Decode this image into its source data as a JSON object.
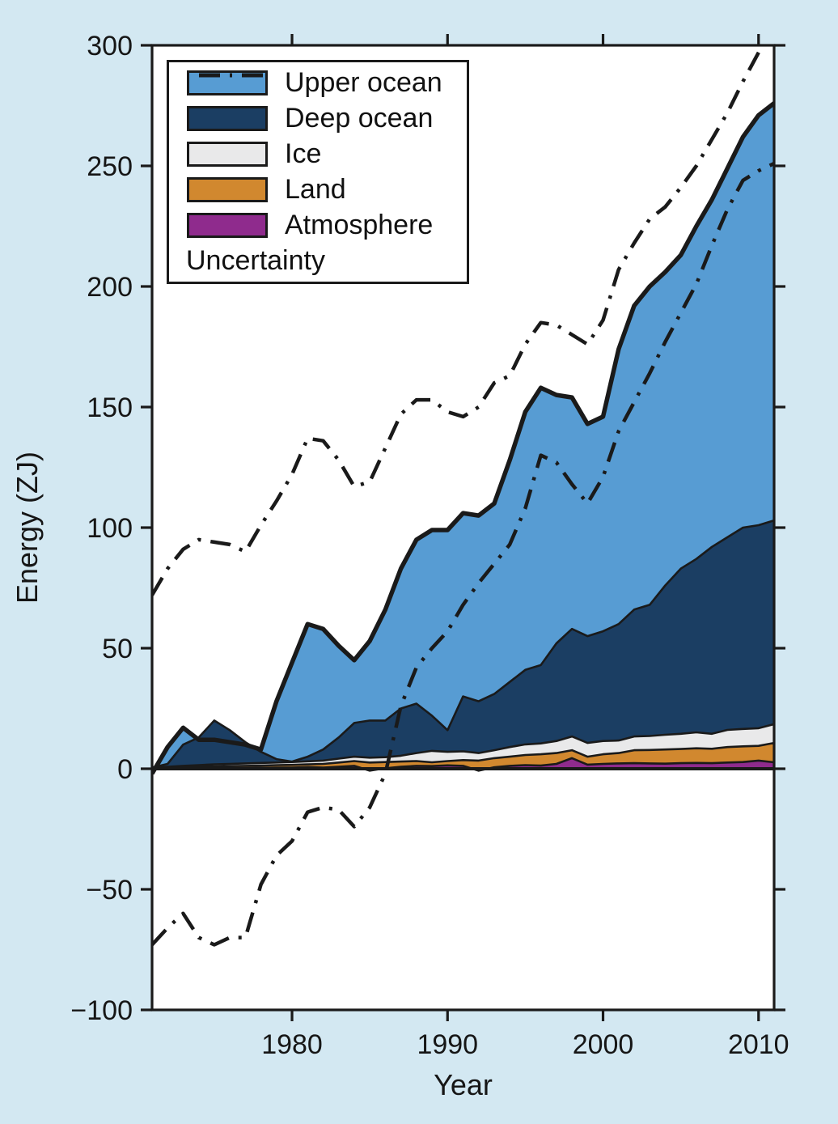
{
  "figure": {
    "background": "#d3e8f2",
    "plot_background": "#ffffff",
    "line_color": "#1a1a1a"
  },
  "axes": {
    "x_label": "Year",
    "y_label": "Energy (ZJ)",
    "x_ticks": [
      1980,
      1990,
      2000,
      2010
    ],
    "y_ticks": [
      300,
      250,
      200,
      150,
      100,
      50,
      0,
      -50,
      -100
    ],
    "x_range": [
      1971,
      2011
    ],
    "y_range": [
      -100,
      300
    ]
  },
  "legend": {
    "items": [
      {
        "label": "Upper ocean",
        "color": "#579cd3",
        "type": "patch"
      },
      {
        "label": "Deep ocean",
        "color": "#1b3e63",
        "type": "patch"
      },
      {
        "label": "Ice",
        "color": "#e9e9ea",
        "type": "patch"
      },
      {
        "label": "Land",
        "color": "#d1882f",
        "type": "patch"
      },
      {
        "label": "Atmosphere",
        "color": "#8f2b8d",
        "type": "patch"
      },
      {
        "label": "Uncertainty",
        "color": "#1a1a1a",
        "type": "dashdot-line"
      }
    ]
  },
  "chart_data": {
    "type": "area",
    "stacked": true,
    "title": "",
    "xlabel": "Year",
    "ylabel": "Energy (ZJ)",
    "xlim": [
      1971,
      2011
    ],
    "ylim": [
      -100,
      300
    ],
    "grid": false,
    "legend_position": "upper-left",
    "years": [
      1971,
      1972,
      1973,
      1974,
      1975,
      1976,
      1977,
      1978,
      1979,
      1980,
      1981,
      1982,
      1983,
      1984,
      1985,
      1986,
      1987,
      1988,
      1989,
      1990,
      1991,
      1992,
      1993,
      1994,
      1995,
      1996,
      1997,
      1998,
      1999,
      2000,
      2001,
      2002,
      2003,
      2004,
      2005,
      2006,
      2007,
      2008,
      2009,
      2010,
      2011
    ],
    "series": [
      {
        "name": "Atmosphere",
        "color": "#8f2b8d",
        "values": [
          0.1,
          0.2,
          0.4,
          0.3,
          0.3,
          0.3,
          0.3,
          0.4,
          0.5,
          0.5,
          0.7,
          0.5,
          0.8,
          1.2,
          -0.8,
          0.2,
          0.8,
          1.2,
          1.1,
          1.4,
          1.2,
          -0.8,
          0.6,
          1.2,
          1.5,
          1.3,
          2.0,
          4.4,
          1.7,
          2.0,
          2.2,
          2.3,
          2.2,
          2.1,
          2.3,
          2.4,
          2.3,
          2.6,
          2.8,
          3.4,
          2.7
        ]
      },
      {
        "name": "Land",
        "color": "#d1882f",
        "values": [
          0.1,
          0.2,
          0.2,
          0.5,
          0.7,
          0.8,
          0.9,
          0.9,
          1.0,
          1.1,
          1.1,
          1.5,
          1.8,
          2.0,
          3.4,
          2.6,
          2.2,
          2.0,
          1.6,
          1.8,
          2.4,
          4.2,
          3.8,
          3.8,
          4.2,
          4.7,
          4.5,
          3.3,
          3.3,
          4.0,
          4.3,
          5.4,
          5.6,
          5.9,
          5.9,
          6.1,
          6.0,
          6.4,
          6.5,
          6.1,
          8.0
        ]
      },
      {
        "name": "Ice",
        "color": "#e9e9ea",
        "values": [
          0.2,
          0.4,
          0.6,
          0.7,
          0.8,
          0.9,
          1.0,
          1.1,
          1.1,
          1.2,
          1.3,
          1.4,
          1.6,
          1.8,
          2.0,
          2.0,
          2.4,
          3.3,
          4.7,
          3.8,
          3.6,
          3.1,
          3.3,
          4.0,
          4.4,
          4.5,
          5.0,
          5.7,
          5.7,
          5.5,
          5.2,
          5.7,
          5.8,
          6.1,
          6.3,
          6.6,
          6.2,
          7.1,
          7.2,
          7.3,
          7.8
        ]
      },
      {
        "name": "Deep ocean",
        "color": "#1b3e63",
        "values": [
          0.1,
          1.2,
          8.8,
          11.5,
          18.2,
          14.0,
          8.8,
          4.6,
          1.4,
          0.2,
          1.9,
          4.6,
          8.8,
          14.0,
          15.4,
          15.2,
          19.6,
          20.5,
          14.6,
          9.0,
          22.8,
          21.5,
          23.3,
          27.0,
          30.9,
          32.5,
          40.5,
          44.6,
          44.3,
          45.5,
          48.3,
          52.6,
          54.4,
          61.9,
          68.5,
          71.9,
          77.5,
          79.9,
          83.5,
          84.2,
          84.5
        ]
      },
      {
        "name": "Upper ocean",
        "color": "#579cd3",
        "values": [
          -2.5,
          7.0,
          7.0,
          -1.0,
          -8.0,
          -5.0,
          -1.0,
          1.0,
          24.0,
          41.0,
          55.0,
          50.0,
          38.0,
          26.0,
          33.0,
          46.0,
          58.0,
          68.0,
          77.0,
          83.0,
          76.0,
          77.0,
          79.0,
          92.0,
          107.0,
          115.0,
          103.0,
          96.0,
          88.0,
          89.0,
          114.0,
          126.0,
          132.0,
          130.0,
          130.0,
          138.0,
          144.0,
          153.0,
          162.0,
          170.0,
          173.0
        ]
      }
    ],
    "total_line": [
      -2,
      9,
      17,
      12,
      12,
      11,
      10,
      8,
      28,
      44,
      60,
      58,
      51,
      45,
      53,
      66,
      83,
      95,
      99,
      99,
      106,
      105,
      110,
      128,
      148,
      158,
      155,
      154,
      143,
      146,
      174,
      192,
      200,
      206,
      213,
      225,
      236,
      249,
      262,
      271,
      276
    ],
    "uncertainty": {
      "upper": [
        72,
        83,
        91,
        95,
        94,
        93,
        90,
        101,
        111,
        122,
        137,
        136,
        128,
        117,
        119,
        133,
        147,
        153,
        153,
        148,
        146,
        150,
        160,
        163,
        176,
        185,
        184,
        180,
        176,
        186,
        207,
        218,
        228,
        233,
        241,
        250,
        261,
        272,
        285,
        297,
        309
      ],
      "lower": [
        -73,
        -66,
        -60,
        -70,
        -73,
        -70,
        -70,
        -48,
        -36,
        -30,
        -18,
        -16,
        -17,
        -24,
        -16,
        -2,
        26,
        42,
        50,
        57,
        68,
        77,
        85,
        93,
        108,
        130,
        127,
        118,
        110,
        121,
        140,
        152,
        164,
        177,
        189,
        201,
        217,
        232,
        244,
        248,
        251
      ]
    }
  }
}
